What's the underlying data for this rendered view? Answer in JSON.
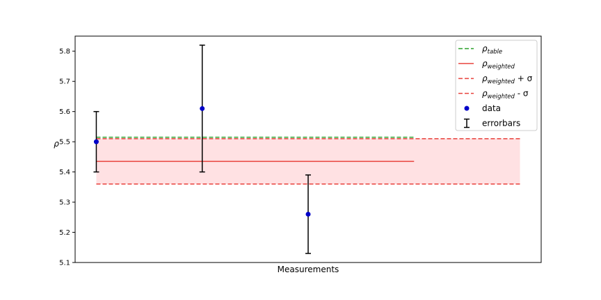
{
  "chart_data": {
    "type": "scatter",
    "title": "",
    "xlabel": "Measurements",
    "ylabel": "ρ",
    "ylim": [
      5.1,
      5.85
    ],
    "yticks": [
      5.1,
      5.2,
      5.3,
      5.4,
      5.5,
      5.6,
      5.7,
      5.8
    ],
    "ytick_labels": [
      "5.1",
      "5.2",
      "5.3",
      "5.4",
      "5.5",
      "5.6",
      "5.7",
      "5.8"
    ],
    "xlim": [
      -0.2,
      4.2
    ],
    "grid": false,
    "legend_position": "top-right",
    "points": [
      {
        "x": 0,
        "y": 5.5,
        "err": 0.1
      },
      {
        "x": 1,
        "y": 5.61,
        "err": 0.21
      },
      {
        "x": 2,
        "y": 5.26,
        "err": 0.13
      }
    ],
    "rho_table": {
      "value": 5.515,
      "x_start": 0,
      "x_end": 3,
      "color": "#2ca02c"
    },
    "rho_weighted": {
      "value": 5.435,
      "x_start": 0,
      "x_end": 3,
      "color": "#e8413b"
    },
    "band": {
      "upper": 5.51,
      "lower": 5.36,
      "x_start": 0,
      "x_end": 4,
      "color": "#e8413b",
      "fill": "#ffe1e3"
    },
    "point_color": "#0000c8",
    "errorbar_color": "#000000",
    "legend": [
      {
        "key": "table",
        "base": "ρ",
        "sub": "table",
        "suffix": "",
        "style": "dashed",
        "color": "#2ca02c"
      },
      {
        "key": "weighted",
        "base": "ρ",
        "sub": "weighted",
        "suffix": "",
        "style": "solid",
        "color": "#e8413b"
      },
      {
        "key": "plus",
        "base": "ρ",
        "sub": "weighted",
        "suffix": " + σ",
        "style": "dashed",
        "color": "#e8413b"
      },
      {
        "key": "minus",
        "base": "ρ",
        "sub": "weighted",
        "suffix": " - σ",
        "style": "dashed",
        "color": "#e8413b"
      },
      {
        "key": "data",
        "base": "data",
        "sub": "",
        "suffix": "",
        "style": "marker",
        "color": "#0000c8"
      },
      {
        "key": "errorbars",
        "base": "errorbars",
        "sub": "",
        "suffix": "",
        "style": "errorbar",
        "color": "#000000"
      }
    ]
  }
}
